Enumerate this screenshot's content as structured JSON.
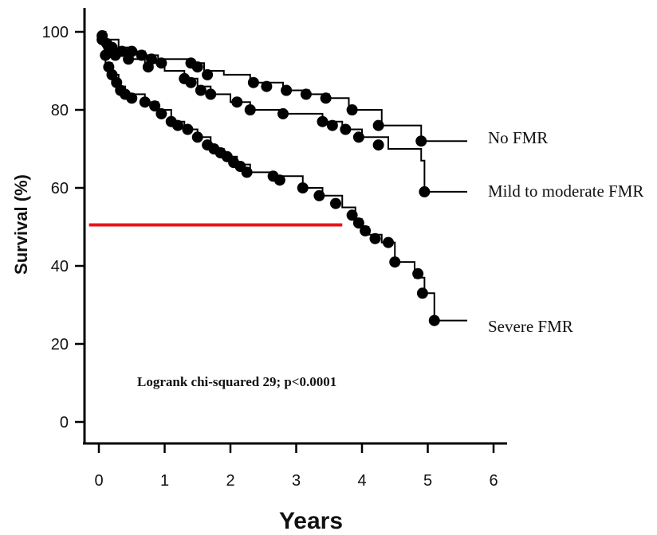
{
  "chart_data": {
    "type": "line",
    "xlabel": "Years",
    "ylabel": "Survival (%)",
    "xlim": [
      0,
      6
    ],
    "ylim": [
      0,
      100
    ],
    "x_ticks": [
      "0",
      "1",
      "2",
      "3",
      "4",
      "5",
      "6"
    ],
    "y_ticks": [
      "0",
      "20",
      "40",
      "60",
      "80",
      "100"
    ],
    "grid": false,
    "annotation": "Logrank chi-squared 29; p<0.0001",
    "reference_line": {
      "y": 50.5,
      "x_start": -0.15,
      "x_end": 3.7,
      "color": "#e8141b"
    },
    "series": [
      {
        "name": "No FMR",
        "steps": [
          [
            0,
            100
          ],
          [
            0.1,
            98
          ],
          [
            0.3,
            96
          ],
          [
            0.5,
            95
          ],
          [
            0.7,
            94
          ],
          [
            0.9,
            93
          ],
          [
            1.4,
            92
          ],
          [
            1.6,
            90
          ],
          [
            1.9,
            89
          ],
          [
            2.3,
            87
          ],
          [
            2.8,
            85
          ],
          [
            3.2,
            84
          ],
          [
            3.5,
            83
          ],
          [
            3.8,
            80
          ],
          [
            4.3,
            76
          ],
          [
            4.9,
            72
          ],
          [
            5.6,
            72
          ]
        ],
        "markers": [
          [
            0.05,
            99
          ],
          [
            0.12,
            97
          ],
          [
            0.2,
            96
          ],
          [
            0.35,
            95
          ],
          [
            0.5,
            95
          ],
          [
            0.65,
            94
          ],
          [
            0.8,
            93
          ],
          [
            0.95,
            92
          ],
          [
            1.4,
            92
          ],
          [
            1.5,
            91
          ],
          [
            1.65,
            89
          ],
          [
            2.35,
            87
          ],
          [
            2.55,
            86
          ],
          [
            2.85,
            85
          ],
          [
            3.15,
            84
          ],
          [
            3.45,
            83
          ],
          [
            3.85,
            80
          ],
          [
            4.25,
            76
          ],
          [
            4.9,
            72
          ]
        ]
      },
      {
        "name": "Mild to moderate FMR",
        "steps": [
          [
            0,
            100
          ],
          [
            0.1,
            97
          ],
          [
            0.2,
            95
          ],
          [
            0.4,
            93
          ],
          [
            0.7,
            92
          ],
          [
            1.0,
            90
          ],
          [
            1.3,
            88
          ],
          [
            1.5,
            86
          ],
          [
            1.7,
            84
          ],
          [
            2.0,
            82
          ],
          [
            2.3,
            80
          ],
          [
            2.8,
            79
          ],
          [
            3.4,
            77
          ],
          [
            3.7,
            75
          ],
          [
            4.0,
            73
          ],
          [
            4.4,
            70
          ],
          [
            4.9,
            67
          ],
          [
            4.95,
            59
          ],
          [
            5.6,
            59
          ]
        ],
        "markers": [
          [
            0.05,
            98
          ],
          [
            0.15,
            96
          ],
          [
            0.25,
            94
          ],
          [
            0.45,
            93
          ],
          [
            0.75,
            91
          ],
          [
            1.3,
            88
          ],
          [
            1.4,
            87
          ],
          [
            1.55,
            85
          ],
          [
            1.7,
            84
          ],
          [
            2.1,
            82
          ],
          [
            2.3,
            80
          ],
          [
            2.8,
            79
          ],
          [
            3.4,
            77
          ],
          [
            3.55,
            76
          ],
          [
            3.75,
            75
          ],
          [
            3.95,
            73
          ],
          [
            4.25,
            71
          ],
          [
            4.95,
            59
          ]
        ]
      },
      {
        "name": "Severe FMR",
        "steps": [
          [
            0,
            100
          ],
          [
            0.1,
            92
          ],
          [
            0.2,
            89
          ],
          [
            0.3,
            86
          ],
          [
            0.4,
            84
          ],
          [
            0.7,
            82
          ],
          [
            0.9,
            80
          ],
          [
            1.1,
            77
          ],
          [
            1.3,
            75
          ],
          [
            1.5,
            73
          ],
          [
            1.7,
            70
          ],
          [
            1.9,
            68
          ],
          [
            2.1,
            66
          ],
          [
            2.3,
            64
          ],
          [
            2.6,
            63
          ],
          [
            3.1,
            60
          ],
          [
            3.4,
            58
          ],
          [
            3.7,
            55
          ],
          [
            3.9,
            52
          ],
          [
            4.0,
            50
          ],
          [
            4.1,
            48
          ],
          [
            4.3,
            46
          ],
          [
            4.5,
            41
          ],
          [
            4.8,
            37
          ],
          [
            4.95,
            33
          ],
          [
            5.1,
            26
          ],
          [
            5.6,
            26
          ]
        ],
        "markers": [
          [
            0.1,
            94
          ],
          [
            0.15,
            91
          ],
          [
            0.2,
            89
          ],
          [
            0.27,
            87
          ],
          [
            0.33,
            85
          ],
          [
            0.4,
            84
          ],
          [
            0.5,
            83
          ],
          [
            0.7,
            82
          ],
          [
            0.85,
            81
          ],
          [
            0.95,
            79
          ],
          [
            1.1,
            77
          ],
          [
            1.2,
            76
          ],
          [
            1.35,
            75
          ],
          [
            1.5,
            73
          ],
          [
            1.65,
            71
          ],
          [
            1.75,
            70
          ],
          [
            1.85,
            69
          ],
          [
            1.95,
            68
          ],
          [
            2.05,
            66.5
          ],
          [
            2.15,
            65.5
          ],
          [
            2.25,
            64
          ],
          [
            2.65,
            63
          ],
          [
            2.75,
            62
          ],
          [
            3.1,
            60
          ],
          [
            3.35,
            58
          ],
          [
            3.6,
            56
          ],
          [
            3.85,
            53
          ],
          [
            3.95,
            51
          ],
          [
            4.05,
            49
          ],
          [
            4.2,
            47
          ],
          [
            4.4,
            46
          ],
          [
            4.5,
            41
          ],
          [
            4.85,
            38
          ],
          [
            4.92,
            33
          ],
          [
            5.1,
            26
          ]
        ]
      }
    ]
  }
}
